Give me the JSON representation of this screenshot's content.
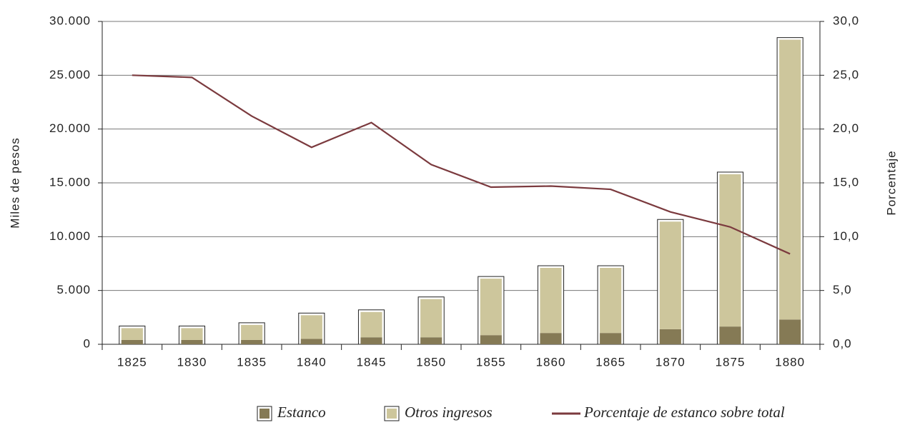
{
  "chart_data": {
    "type": "bar",
    "categories": [
      "1825",
      "1830",
      "1835",
      "1840",
      "1845",
      "1850",
      "1855",
      "1860",
      "1865",
      "1870",
      "1875",
      "1880"
    ],
    "series": [
      {
        "name": "Estanco",
        "color": "#857a55",
        "values": [
          400,
          400,
          400,
          500,
          650,
          650,
          850,
          1050,
          1050,
          1400,
          1650,
          2300
        ]
      },
      {
        "name": "Otros ingresos",
        "color": "#cdc69c",
        "values": [
          1100,
          1100,
          1400,
          2200,
          2350,
          3550,
          5250,
          6050,
          6050,
          10000,
          14150,
          26000
        ]
      },
      {
        "name": "Porcentaje de estanco sobre total",
        "color": "#7b3a3e",
        "type": "line",
        "axis": "y2",
        "values": [
          25.0,
          24.8,
          21.2,
          18.3,
          20.6,
          16.7,
          14.6,
          14.7,
          14.4,
          12.3,
          10.9,
          8.4
        ]
      }
    ],
    "ylabel": "Miles de pesos",
    "y2label": "Porcentaje",
    "ylim": [
      0,
      30000
    ],
    "yticks": [
      0,
      {
        "value": 5000,
        "label": "5.000"
      },
      {
        "value": 10000,
        "label": "10.000"
      },
      {
        "value": 15000,
        "label": "15.000"
      },
      {
        "value": 20000,
        "label": "20.000"
      },
      {
        "value": 25000,
        "label": "25.000"
      },
      {
        "value": 30000,
        "label": "30.000"
      }
    ],
    "y2lim": [
      0,
      30
    ],
    "y2ticks": [
      {
        "value": 0,
        "label": "0,0"
      },
      {
        "value": 5,
        "label": "5,0"
      },
      {
        "value": 10,
        "label": "10,0"
      },
      {
        "value": 15,
        "label": "15,0"
      },
      {
        "value": 20,
        "label": "20,0"
      },
      {
        "value": 25,
        "label": "25,0"
      },
      {
        "value": 30,
        "label": "30,0"
      }
    ],
    "stacked": true,
    "grid": true,
    "legend": "bottom"
  }
}
